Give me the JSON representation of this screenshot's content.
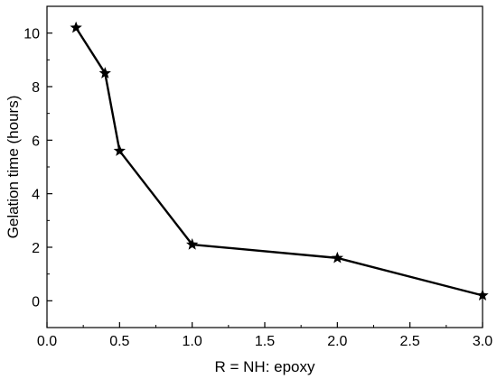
{
  "chart_data": {
    "type": "line",
    "xlabel": "R = NH: epoxy",
    "ylabel": "Gelation time (hours)",
    "xlim": [
      0.0,
      3.0
    ],
    "ylim": [
      -1.0,
      11.0
    ],
    "xticks": [
      0.0,
      0.5,
      1.0,
      1.5,
      2.0,
      2.5,
      3.0
    ],
    "xtick_labels": [
      "0.0",
      "0.5",
      "1.0",
      "1.5",
      "2.0",
      "2.5",
      "3.0"
    ],
    "yticks": [
      0,
      2,
      4,
      6,
      8,
      10
    ],
    "ytick_labels": [
      "0",
      "2",
      "4",
      "6",
      "8",
      "10"
    ],
    "grid": false,
    "marker": "star",
    "color": "#000000",
    "series": [
      {
        "x": [
          0.2,
          0.4,
          0.5,
          1.0,
          2.0,
          3.0
        ],
        "y": [
          10.2,
          8.5,
          5.6,
          2.1,
          1.6,
          0.2
        ]
      }
    ]
  }
}
